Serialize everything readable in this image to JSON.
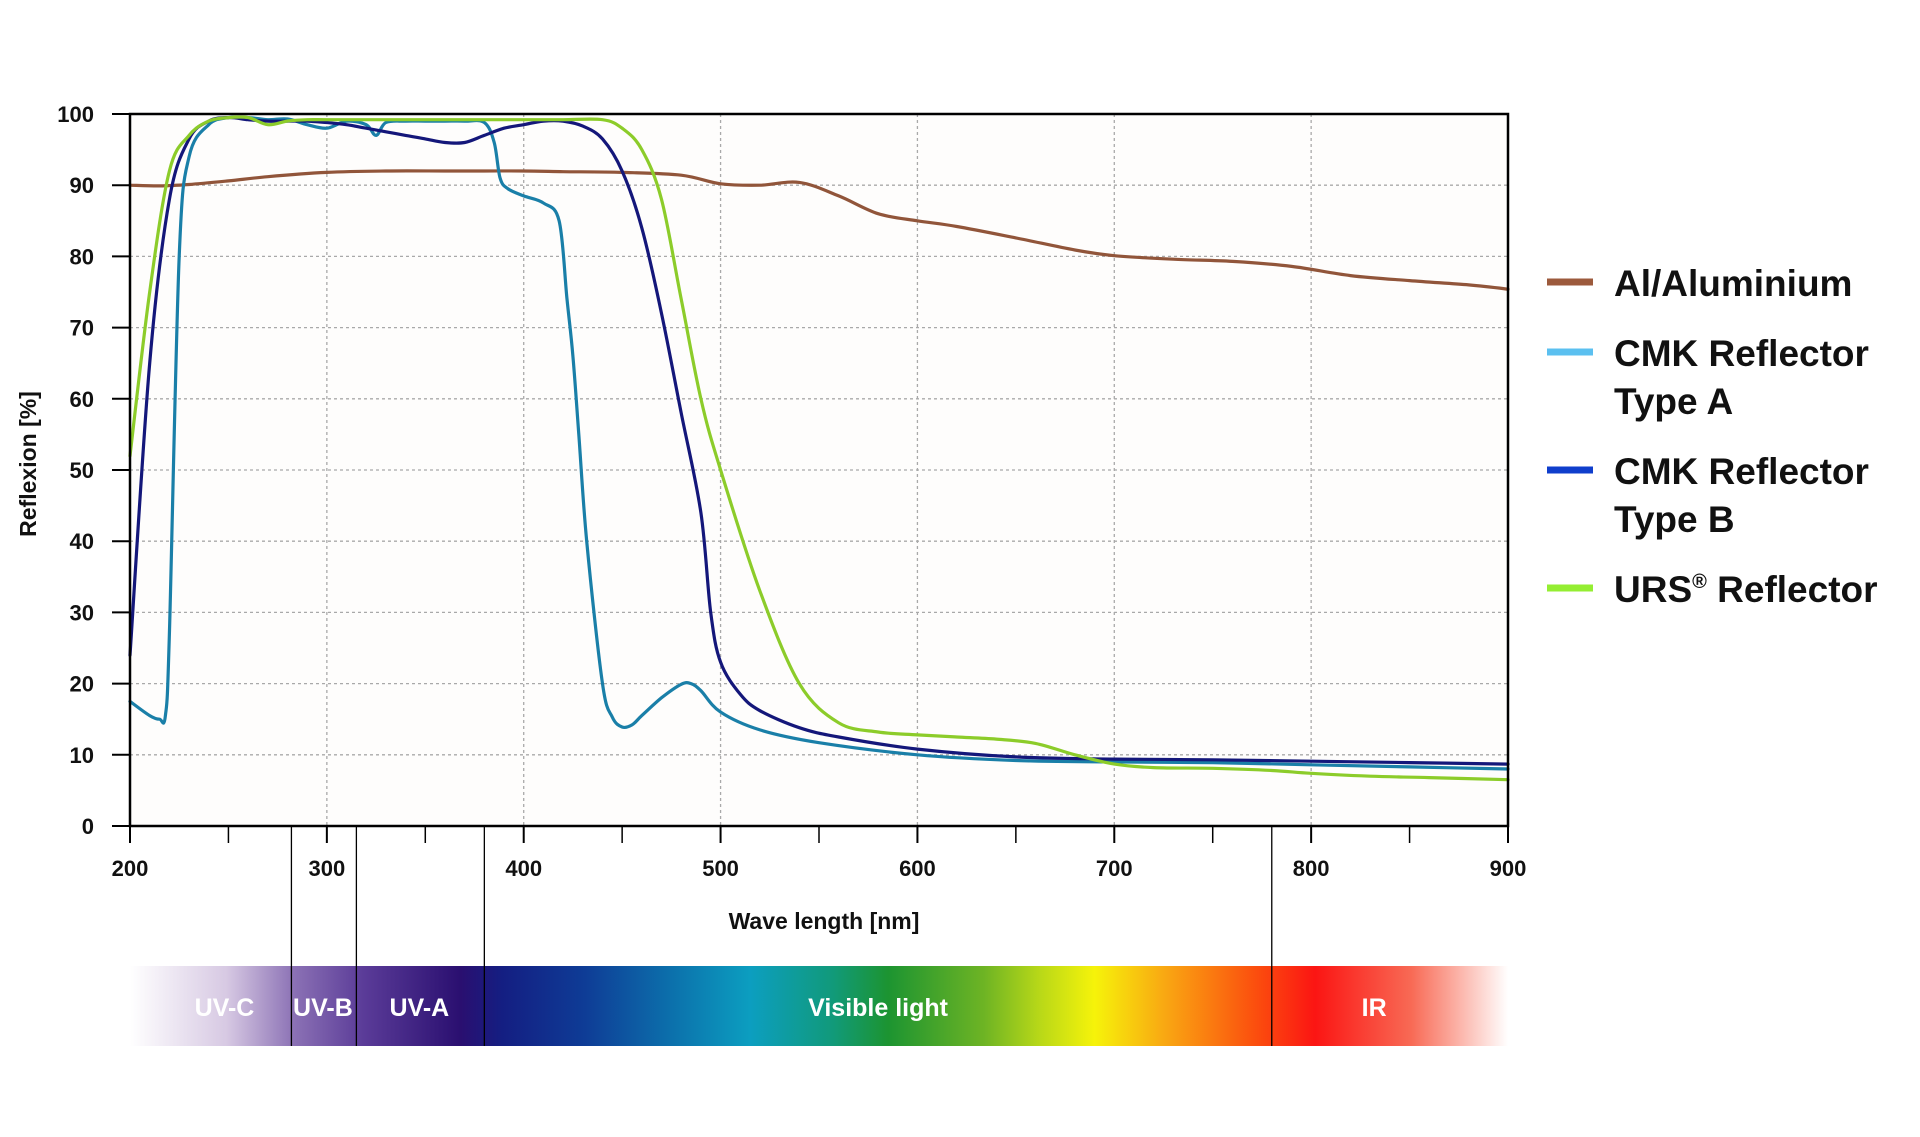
{
  "chart_data": {
    "type": "line",
    "xlabel": "Wave length [nm]",
    "ylabel": "Reflexion [%]",
    "xlim": [
      200,
      900
    ],
    "ylim": [
      0,
      100
    ],
    "x_major_ticks": [
      200,
      300,
      400,
      500,
      600,
      700,
      800,
      900
    ],
    "x_minor_ticks": [
      250,
      350,
      450,
      550,
      650,
      750,
      850
    ],
    "y_ticks": [
      0,
      10,
      20,
      30,
      40,
      50,
      60,
      70,
      80,
      90,
      100
    ],
    "grid": true,
    "legend_position": "right",
    "series": [
      {
        "name": "Al/Aluminium",
        "color": "#9c5a3c",
        "line_color": "#91553a",
        "x": [
          200,
          215,
          230,
          250,
          270,
          300,
          330,
          360,
          380,
          400,
          420,
          450,
          480,
          500,
          520,
          540,
          560,
          580,
          600,
          620,
          650,
          680,
          700,
          730,
          760,
          790,
          820,
          850,
          880,
          900
        ],
        "y": [
          90,
          89.9,
          90.1,
          90.6,
          91.2,
          91.8,
          92,
          92,
          92,
          92,
          91.9,
          91.8,
          91.4,
          90.2,
          90,
          90.4,
          88.5,
          86,
          85,
          84.2,
          82.6,
          80.9,
          80.1,
          79.6,
          79.3,
          78.6,
          77.3,
          76.6,
          76,
          75.4
        ]
      },
      {
        "name": "CMK Reflector Type A",
        "name_lines": [
          "CMK Reflector",
          "Type A"
        ],
        "color": "#5bc0f0",
        "line_color": "#1a7fa8",
        "x": [
          200,
          210,
          215,
          218,
          220,
          225,
          230,
          240,
          250,
          260,
          270,
          280,
          290,
          300,
          310,
          320,
          325,
          330,
          340,
          350,
          360,
          370,
          380,
          385,
          388,
          392,
          400,
          410,
          418,
          422,
          425,
          428,
          432,
          440,
          445,
          450,
          455,
          460,
          470,
          480,
          485,
          490,
          500,
          520,
          550,
          600,
          650,
          700,
          750,
          800,
          850,
          900
        ],
        "y": [
          17.5,
          15.5,
          15,
          15.5,
          27,
          80,
          94,
          98.5,
          99.5,
          99.5,
          99.2,
          99.3,
          98.5,
          98,
          99,
          98.5,
          97,
          98.8,
          99,
          99,
          99,
          99,
          98.8,
          96,
          91,
          89.5,
          88.5,
          87.5,
          85,
          74,
          66,
          55,
          40,
          20,
          15.3,
          13.9,
          14.2,
          15.5,
          18,
          19.9,
          20,
          19,
          16,
          13.5,
          11.7,
          10,
          9.2,
          9,
          8.9,
          8.6,
          8.3,
          8
        ]
      },
      {
        "name": "CMK Reflector Type B",
        "name_lines": [
          "CMK Reflector",
          "Type B"
        ],
        "color": "#0f3ecc",
        "line_color": "#14177a",
        "x": [
          200,
          210,
          220,
          230,
          240,
          250,
          260,
          270,
          280,
          290,
          300,
          310,
          320,
          330,
          340,
          350,
          360,
          370,
          380,
          390,
          400,
          410,
          420,
          430,
          440,
          450,
          460,
          470,
          480,
          490,
          495,
          500,
          510,
          520,
          540,
          560,
          600,
          650,
          700,
          750,
          800,
          850,
          900
        ],
        "y": [
          24,
          65,
          88,
          96.5,
          99,
          99.5,
          99.2,
          99,
          99,
          99,
          98.8,
          98.5,
          98,
          97.5,
          97,
          96.5,
          96,
          96,
          97,
          98,
          98.5,
          99,
          99,
          98.3,
          96.5,
          92,
          84,
          72,
          58,
          44,
          30,
          23,
          18.5,
          16.2,
          13.8,
          12.5,
          10.8,
          9.7,
          9.4,
          9.3,
          9.1,
          8.9,
          8.7
        ]
      },
      {
        "name": "URS® Reflector",
        "name_base": "URS",
        "name_sup": "®",
        "name_rest": " Reflector",
        "color": "#94ee32",
        "line_color": "#8ccc2a",
        "x": [
          200,
          210,
          220,
          230,
          240,
          250,
          260,
          270,
          280,
          290,
          300,
          320,
          350,
          380,
          400,
          420,
          440,
          450,
          460,
          470,
          480,
          490,
          500,
          520,
          540,
          560,
          580,
          600,
          620,
          640,
          660,
          680,
          700,
          720,
          750,
          780,
          800,
          830,
          860,
          900
        ],
        "y": [
          52,
          75,
          92,
          97,
          99,
          99.5,
          99.5,
          98.5,
          99,
          99.2,
          99.2,
          99.2,
          99.2,
          99.2,
          99.2,
          99.2,
          99.2,
          98,
          95,
          88,
          74,
          60,
          50,
          33,
          20,
          14.5,
          13.2,
          12.8,
          12.5,
          12.2,
          11.6,
          10,
          8.7,
          8.2,
          8.1,
          7.8,
          7.4,
          7,
          6.8,
          6.5
        ]
      }
    ],
    "spectrum": {
      "boundaries": [
        200,
        282,
        315,
        380,
        780,
        900
      ],
      "bands": [
        {
          "label": "UV-C",
          "x_center": 248
        },
        {
          "label": "UV-B",
          "x_center": 298
        },
        {
          "label": "UV-A",
          "x_center": 347
        },
        {
          "label": "Visible light",
          "x_center": 580
        },
        {
          "label": "IR",
          "x_center": 832
        }
      ]
    }
  }
}
